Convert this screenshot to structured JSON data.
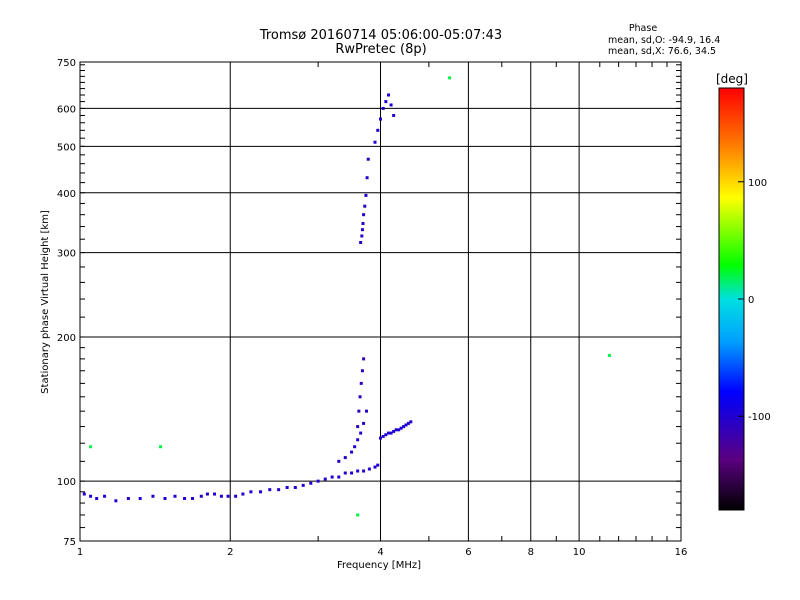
{
  "chart_data": {
    "type": "scatter",
    "title": "Tromsø 20160714 05:06:00-05:07:43",
    "subtitle": "RwPretec (8p)",
    "xlabel": "Frequency [MHz]",
    "ylabel": "Stationary phase Virtual Height [km]",
    "x_scale": "log",
    "y_scale": "log",
    "xlim": [
      1,
      16
    ],
    "ylim": [
      75,
      750
    ],
    "x_ticks": [
      1,
      2,
      4,
      6,
      8,
      10,
      16
    ],
    "x_tick_labels": [
      "1",
      "2",
      "4",
      "6",
      "8",
      "10",
      "16"
    ],
    "y_ticks": [
      75,
      100,
      200,
      300,
      400,
      500,
      600,
      750
    ],
    "y_tick_labels": [
      "75",
      "100",
      "200",
      "300",
      "400",
      "500",
      "600",
      "750"
    ],
    "grid": true,
    "stats": {
      "heading": "Phase",
      "line_o": "mean, sd,O: -94.9, 16.4",
      "line_x": "mean, sd,X:  76.6, 34.5"
    },
    "colorbar": {
      "label": "[deg]",
      "range": [
        -180,
        180
      ],
      "ticks": [
        100,
        0,
        -100
      ],
      "tick_labels": [
        "100",
        "0",
        "-100"
      ]
    },
    "traces": [
      {
        "name": "",
        "x": [
          1.02,
          1.05,
          1.08,
          1.12,
          1.18,
          1.25,
          1.32,
          1.4,
          1.48,
          1.55,
          1.62,
          1.68,
          1.75,
          1.8,
          1.86,
          1.92,
          1.98,
          2.05,
          2.12,
          2.2,
          2.3,
          2.4,
          2.5,
          2.6,
          2.7,
          2.8,
          2.9,
          3.0,
          3.1,
          3.2,
          3.3,
          3.4,
          3.5,
          3.6,
          3.7,
          3.8,
          3.9,
          3.95
        ],
        "y": [
          94,
          93,
          92,
          93,
          91,
          92,
          92,
          93,
          92,
          93,
          92,
          92,
          93,
          94,
          94,
          93,
          93,
          93,
          94,
          95,
          95,
          96,
          96,
          97,
          97,
          98,
          99,
          100,
          101,
          102,
          102,
          104,
          104,
          105,
          105,
          106,
          107,
          108
        ],
        "phase": -100
      },
      {
        "name": "",
        "x": [
          3.3,
          3.4,
          3.5,
          3.55,
          3.6,
          3.65,
          3.7,
          3.75
        ],
        "y": [
          110,
          112,
          115,
          118,
          122,
          126,
          132,
          140
        ],
        "phase": -105
      },
      {
        "name": "",
        "x": [
          3.6,
          3.62,
          3.64,
          3.66,
          3.68,
          3.7
        ],
        "y": [
          130,
          140,
          150,
          160,
          170,
          180
        ],
        "phase": -110
      },
      {
        "name": "",
        "x": [
          4.0,
          4.05,
          4.1,
          4.15,
          4.2,
          4.25,
          4.3,
          4.35,
          4.4,
          4.45,
          4.5,
          4.55,
          4.6
        ],
        "y": [
          123,
          124,
          125,
          126,
          126,
          127,
          128,
          128,
          129,
          130,
          131,
          132,
          133
        ],
        "phase": -100
      },
      {
        "name": "",
        "x": [
          3.65,
          3.67,
          3.68,
          3.69,
          3.7,
          3.72,
          3.74,
          3.76,
          3.78
        ],
        "y": [
          315,
          325,
          335,
          345,
          360,
          375,
          395,
          430,
          470
        ],
        "phase": -105
      },
      {
        "name": "",
        "x": [
          3.9,
          3.95,
          4.0,
          4.05,
          4.1,
          4.15,
          4.2,
          4.25
        ],
        "y": [
          510,
          540,
          570,
          600,
          620,
          640,
          610,
          580
        ],
        "phase": -100
      },
      {
        "name": "",
        "x": [
          1.05,
          1.45,
          3.6,
          5.5,
          11.5
        ],
        "y": [
          118,
          118,
          85,
          695,
          183
        ],
        "phase": 20
      }
    ]
  }
}
